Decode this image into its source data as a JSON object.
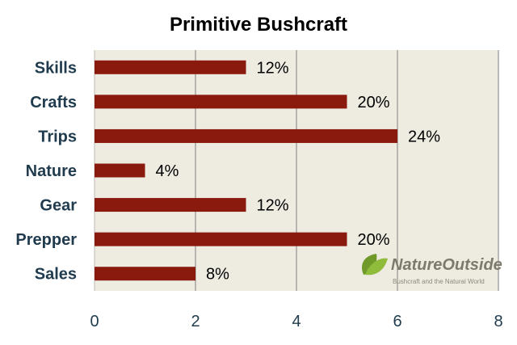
{
  "chart_data": {
    "type": "bar",
    "orientation": "horizontal",
    "title": "Primitive Bushcraft",
    "categories": [
      "Skills",
      "Crafts",
      "Trips",
      "Nature",
      "Gear",
      "Prepper",
      "Sales"
    ],
    "values": [
      3,
      5,
      6,
      1,
      3,
      5,
      2
    ],
    "data_labels": [
      "12%",
      "20%",
      "24%",
      "4%",
      "12%",
      "20%",
      "8%"
    ],
    "xlim": [
      0,
      8
    ],
    "xticks": [
      "0",
      "2",
      "4",
      "6",
      "8"
    ],
    "grid": "vertical",
    "legend": "none",
    "colors": {
      "bar": "#8b1a0e",
      "plot_bg": "#eeebe1",
      "axis_text": "#1f3b4d",
      "grid": "#7f7f7f"
    }
  },
  "watermark": {
    "name": "NatureOutside",
    "tagline": "Bushcraft and the Natural World",
    "icon": "leaf-icon"
  }
}
